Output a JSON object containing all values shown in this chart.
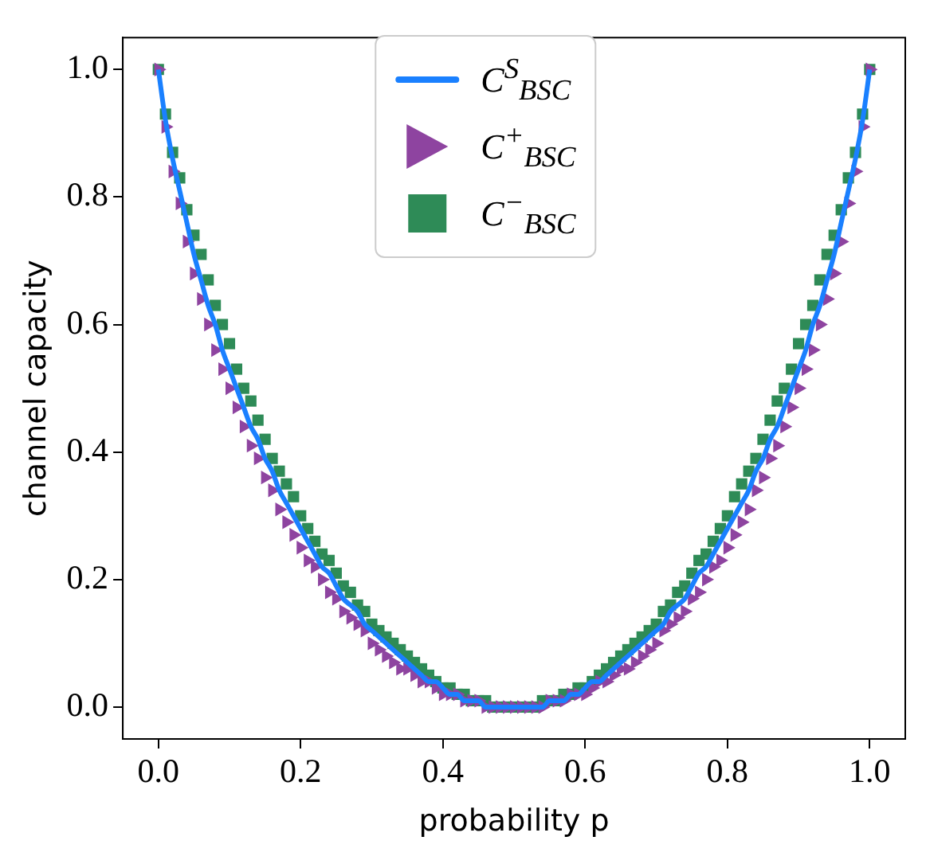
{
  "chart_data": {
    "type": "scatter",
    "xlabel": "probability p",
    "ylabel": "channel capacity",
    "x": [
      0,
      0.01,
      0.02,
      0.03,
      0.04,
      0.05,
      0.06,
      0.07,
      0.08,
      0.09,
      0.1,
      0.11,
      0.12,
      0.13,
      0.14,
      0.15,
      0.16,
      0.17,
      0.18,
      0.19,
      0.2,
      0.21,
      0.22,
      0.23,
      0.24,
      0.25,
      0.26,
      0.27,
      0.28,
      0.29,
      0.3,
      0.31,
      0.32,
      0.33,
      0.34,
      0.35,
      0.36,
      0.37,
      0.38,
      0.39,
      0.4,
      0.41,
      0.42,
      0.43,
      0.44,
      0.45,
      0.46,
      0.47,
      0.48,
      0.49,
      0.5,
      0.51,
      0.52,
      0.53,
      0.54,
      0.55,
      0.56,
      0.57,
      0.58,
      0.59,
      0.6,
      0.61,
      0.62,
      0.63,
      0.64,
      0.65,
      0.66,
      0.67,
      0.68,
      0.69,
      0.7,
      0.71,
      0.72,
      0.73,
      0.74,
      0.75,
      0.76,
      0.77,
      0.78,
      0.79,
      0.8,
      0.81,
      0.82,
      0.83,
      0.84,
      0.85,
      0.86,
      0.87,
      0.88,
      0.89,
      0.9,
      0.91,
      0.92,
      0.93,
      0.94,
      0.95,
      0.96,
      0.97,
      0.98,
      0.99,
      1
    ],
    "series": [
      {
        "name": "C$^{S}$$_{BSC}$",
        "type": "line",
        "marker": "none",
        "color": "#1a80ff",
        "values": [
          1,
          0.92,
          0.86,
          0.81,
          0.76,
          0.71,
          0.67,
          0.63,
          0.6,
          0.56,
          0.53,
          0.5,
          0.47,
          0.44,
          0.42,
          0.39,
          0.37,
          0.34,
          0.32,
          0.3,
          0.28,
          0.26,
          0.24,
          0.22,
          0.21,
          0.19,
          0.17,
          0.16,
          0.15,
          0.13,
          0.12,
          0.11,
          0.1,
          0.09,
          0.08,
          0.07,
          0.06,
          0.05,
          0.04,
          0.04,
          0.03,
          0.02,
          0.02,
          0.01,
          0.01,
          0.01,
          0,
          0,
          0,
          0,
          0,
          0,
          0,
          0,
          0,
          0.01,
          0.01,
          0.01,
          0.02,
          0.02,
          0.03,
          0.04,
          0.04,
          0.05,
          0.06,
          0.07,
          0.08,
          0.09,
          0.1,
          0.11,
          0.12,
          0.13,
          0.15,
          0.16,
          0.17,
          0.19,
          0.21,
          0.22,
          0.24,
          0.26,
          0.28,
          0.3,
          0.32,
          0.34,
          0.37,
          0.39,
          0.42,
          0.44,
          0.47,
          0.5,
          0.53,
          0.56,
          0.6,
          0.63,
          0.67,
          0.71,
          0.76,
          0.81,
          0.86,
          0.92,
          1
        ]
      },
      {
        "name": "C$^{+}$$_{BSC}$",
        "type": "scatter",
        "marker": "triangle",
        "color": "#8e44a0",
        "values": [
          1,
          0.91,
          0.84,
          0.79,
          0.73,
          0.68,
          0.64,
          0.6,
          0.56,
          0.53,
          0.5,
          0.47,
          0.44,
          0.41,
          0.39,
          0.36,
          0.34,
          0.31,
          0.29,
          0.27,
          0.25,
          0.23,
          0.22,
          0.2,
          0.18,
          0.17,
          0.15,
          0.14,
          0.13,
          0.12,
          0.1,
          0.09,
          0.08,
          0.07,
          0.06,
          0.06,
          0.05,
          0.04,
          0.04,
          0.03,
          0.02,
          0.02,
          0.02,
          0.01,
          0.01,
          0.01,
          0,
          0,
          0,
          0,
          0,
          0,
          0,
          0,
          0,
          0.01,
          0.01,
          0.01,
          0.02,
          0.02,
          0.02,
          0.03,
          0.04,
          0.04,
          0.05,
          0.06,
          0.06,
          0.07,
          0.08,
          0.09,
          0.1,
          0.12,
          0.13,
          0.14,
          0.15,
          0.17,
          0.18,
          0.2,
          0.22,
          0.23,
          0.25,
          0.27,
          0.29,
          0.31,
          0.34,
          0.36,
          0.39,
          0.41,
          0.44,
          0.47,
          0.5,
          0.53,
          0.56,
          0.6,
          0.64,
          0.68,
          0.73,
          0.79,
          0.84,
          0.91,
          1
        ]
      },
      {
        "name": "C$^{−}$$_{BSC}$",
        "type": "scatter",
        "marker": "square",
        "color": "#2e8b57",
        "values": [
          1,
          0.93,
          0.87,
          0.83,
          0.78,
          0.74,
          0.71,
          0.67,
          0.63,
          0.6,
          0.57,
          0.53,
          0.5,
          0.48,
          0.45,
          0.42,
          0.39,
          0.37,
          0.35,
          0.33,
          0.3,
          0.28,
          0.26,
          0.24,
          0.23,
          0.21,
          0.19,
          0.18,
          0.16,
          0.15,
          0.13,
          0.12,
          0.11,
          0.1,
          0.09,
          0.08,
          0.07,
          0.06,
          0.05,
          0.04,
          0.03,
          0.03,
          0.02,
          0.02,
          0.01,
          0.01,
          0.01,
          0,
          0,
          0,
          0,
          0,
          0,
          0,
          0.01,
          0.01,
          0.01,
          0.02,
          0.02,
          0.03,
          0.03,
          0.04,
          0.05,
          0.06,
          0.07,
          0.08,
          0.09,
          0.1,
          0.11,
          0.12,
          0.13,
          0.15,
          0.16,
          0.18,
          0.19,
          0.21,
          0.23,
          0.24,
          0.26,
          0.28,
          0.3,
          0.33,
          0.35,
          0.37,
          0.39,
          0.42,
          0.45,
          0.48,
          0.5,
          0.53,
          0.57,
          0.6,
          0.63,
          0.67,
          0.71,
          0.74,
          0.78,
          0.83,
          0.87,
          0.93,
          1
        ]
      }
    ],
    "xlim": [
      -0.05,
      1.05
    ],
    "ylim": [
      -0.05,
      1.05
    ],
    "xticks": [
      {
        "value": 0,
        "label": "0.0"
      },
      0.2,
      0.4,
      0.6,
      0.8,
      {
        "value": 1,
        "label": "1.0"
      }
    ],
    "yticks": [
      {
        "value": 0,
        "label": "0.0"
      },
      0.2,
      0.4,
      0.6,
      0.8,
      {
        "value": 1,
        "label": "1.0"
      }
    ],
    "grid": false,
    "legend": "top"
  }
}
